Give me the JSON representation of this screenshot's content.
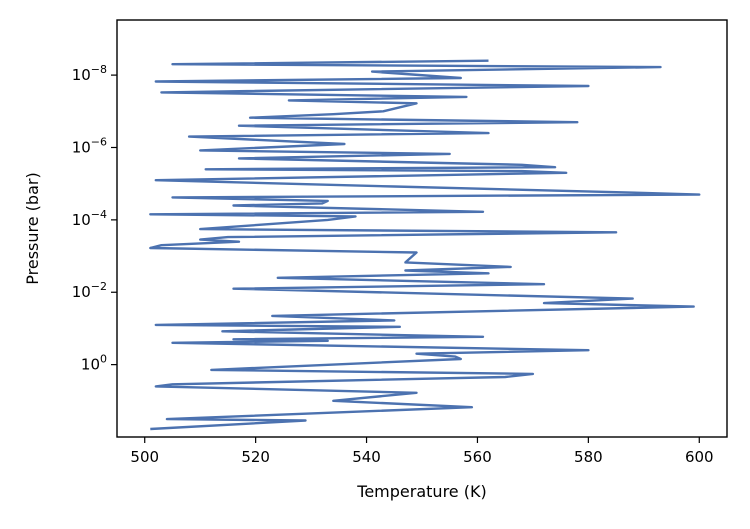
{
  "chart_data": {
    "type": "line",
    "title": "",
    "xlabel": "Temperature (K)",
    "ylabel": "Pressure (bar)",
    "xlim": [
      495,
      605
    ],
    "ylim": [
      100,
      3e-10
    ],
    "y_scale": "log",
    "y_inverted": true,
    "grid": false,
    "legend": "none",
    "line_color": "#4c72b0",
    "xticks": [
      500,
      520,
      540,
      560,
      580,
      600
    ],
    "xtick_labels": [
      "500",
      "520",
      "540",
      "560",
      "580",
      "600"
    ],
    "yticks": [
      1,
      0.01,
      0.0001,
      1e-06,
      1e-08
    ],
    "ytick_labels": [
      {
        "base": "10",
        "exp": "0"
      },
      {
        "base": "10",
        "exp": "−2"
      },
      {
        "base": "10",
        "exp": "−4"
      },
      {
        "base": "10",
        "exp": "−6"
      },
      {
        "base": "10",
        "exp": "−8"
      }
    ],
    "series": [
      {
        "points": [
          [
            501,
            60
          ],
          [
            529,
            35
          ],
          [
            504,
            32
          ],
          [
            559,
            15
          ],
          [
            534,
            10
          ],
          [
            549,
            6
          ],
          [
            502,
            4
          ],
          [
            505,
            3.5
          ],
          [
            565,
            2.2
          ],
          [
            570,
            1.8
          ],
          [
            512,
            1.4
          ],
          [
            557,
            0.7
          ],
          [
            556,
            0.6
          ],
          [
            549,
            0.5
          ],
          [
            580,
            0.4
          ],
          [
            505,
            0.25
          ],
          [
            533,
            0.22
          ],
          [
            516,
            0.2
          ],
          [
            561,
            0.17
          ],
          [
            514,
            0.12
          ],
          [
            546,
            0.09
          ],
          [
            502,
            0.08
          ],
          [
            545,
            0.06
          ],
          [
            523,
            0.045
          ],
          [
            599,
            0.025
          ],
          [
            572,
            0.02
          ],
          [
            588,
            0.015
          ],
          [
            516,
            0.008
          ],
          [
            572,
            0.006
          ],
          [
            524,
            0.004
          ],
          [
            562,
            0.003
          ],
          [
            547,
            0.0025
          ],
          [
            566,
            0.002
          ],
          [
            547,
            0.0015
          ],
          [
            549,
            0.0008
          ],
          [
            501,
            0.0006
          ],
          [
            503,
            0.0005
          ],
          [
            517,
            0.0004
          ],
          [
            510,
            0.00035
          ],
          [
            515,
            0.0003
          ],
          [
            585,
            0.00022
          ],
          [
            510,
            0.00018
          ],
          [
            533,
            0.0001
          ],
          [
            538,
            8e-05
          ],
          [
            501,
            7e-05
          ],
          [
            561,
            6e-05
          ],
          [
            516,
            4e-05
          ],
          [
            532,
            3.5e-05
          ],
          [
            533,
            3e-05
          ],
          [
            505,
            2.4e-05
          ],
          [
            600,
            2e-05
          ],
          [
            590,
            1.8e-05
          ],
          [
            545,
            1.2e-05
          ],
          [
            502,
            8e-06
          ],
          [
            576,
            5e-06
          ],
          [
            568,
            4.5e-06
          ],
          [
            511,
            4e-06
          ],
          [
            574,
            3.5e-06
          ],
          [
            568,
            3e-06
          ],
          [
            517,
            2e-06
          ],
          [
            555,
            1.5e-06
          ],
          [
            510,
            1.2e-06
          ],
          [
            536,
            8e-07
          ],
          [
            508,
            5e-07
          ],
          [
            562,
            4e-07
          ],
          [
            517,
            2.5e-07
          ],
          [
            578,
            2e-07
          ],
          [
            519,
            1.5e-07
          ],
          [
            534,
            1.2e-07
          ],
          [
            543,
            1e-07
          ],
          [
            549,
            6e-08
          ],
          [
            526,
            5e-08
          ],
          [
            558,
            4e-08
          ],
          [
            503,
            3e-08
          ],
          [
            580,
            2e-08
          ],
          [
            502,
            1.5e-08
          ],
          [
            557,
            1.2e-08
          ],
          [
            541,
            8e-09
          ],
          [
            593,
            6e-09
          ],
          [
            505,
            5e-09
          ],
          [
            562,
            4e-09
          ]
        ]
      }
    ]
  }
}
